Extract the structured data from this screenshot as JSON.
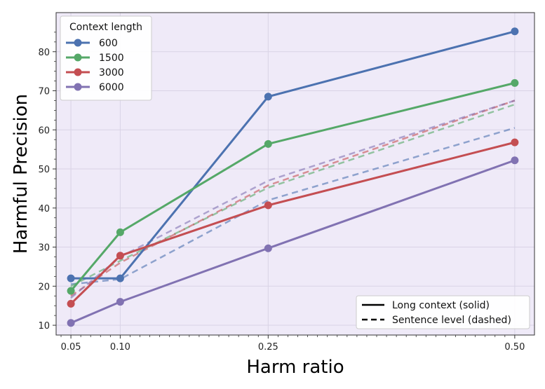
{
  "chart_data": {
    "type": "line",
    "xlabel": "Harm ratio",
    "ylabel": "Harmful Precision",
    "x": [
      0.05,
      0.1,
      0.25,
      0.5
    ],
    "x_tick_labels": [
      "0.05",
      "0.10",
      "0.25",
      "0.50"
    ],
    "xlim": [
      0.035,
      0.52
    ],
    "ylim": [
      7.5,
      90
    ],
    "y_ticks": [
      10,
      20,
      30,
      40,
      50,
      60,
      70,
      80
    ],
    "grid": true,
    "legend_title": "Context length",
    "legend_position": "top-left",
    "series": [
      {
        "name": "600",
        "color": "#4c72b0",
        "values": [
          22.0,
          22.0,
          68.5,
          85.2
        ],
        "dashed_values": [
          20.5,
          21.8,
          42.0,
          60.5
        ]
      },
      {
        "name": "1500",
        "color": "#55a868",
        "values": [
          18.8,
          33.8,
          56.4,
          72.0
        ],
        "dashed_values": [
          20.0,
          26.5,
          45.2,
          66.5
        ]
      },
      {
        "name": "3000",
        "color": "#c44e52",
        "values": [
          15.5,
          27.8,
          40.7,
          56.8
        ],
        "dashed_values": [
          17.5,
          26.0,
          45.8,
          67.5
        ]
      },
      {
        "name": "6000",
        "color": "#8172b2",
        "values": [
          10.6,
          16.0,
          29.7,
          52.2
        ],
        "dashed_values": [
          17.0,
          27.5,
          47.0,
          67.5
        ]
      }
    ],
    "style_legend": [
      {
        "label": "Long context (solid)",
        "style": "solid"
      },
      {
        "label": "Sentence level (dashed)",
        "style": "dashed"
      }
    ]
  }
}
